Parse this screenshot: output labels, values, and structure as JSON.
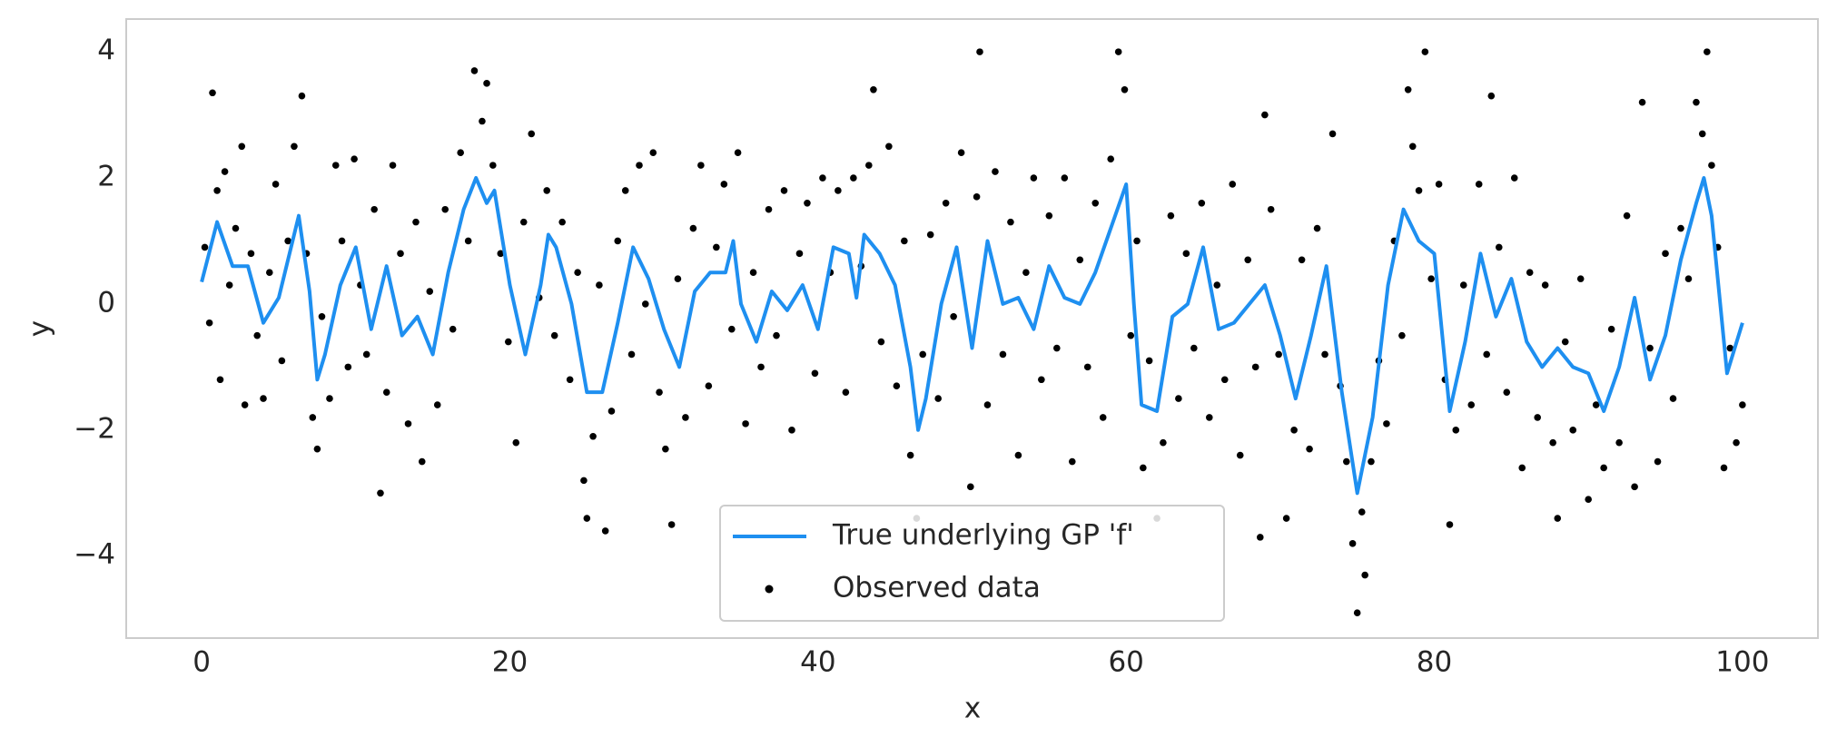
{
  "chart_data": {
    "type": "line",
    "xlabel": "x",
    "ylabel": "y",
    "xlim": [
      -4.9,
      104.9
    ],
    "ylim": [
      -5.3,
      4.52
    ],
    "xticks": [
      0,
      20,
      40,
      60,
      80,
      100
    ],
    "yticks": [
      {
        "value": -4,
        "label": "−4"
      },
      {
        "value": -2,
        "label": "−2"
      },
      0,
      2,
      4
    ],
    "grid": false,
    "legend": "lower center",
    "series": [
      {
        "name": "True underlying GP 'f'",
        "type": "line",
        "color": "#1e8ff0",
        "x": [
          0,
          1,
          2,
          3,
          4,
          5,
          6.3,
          7,
          7.5,
          8,
          9,
          10,
          11,
          12,
          13,
          14,
          15,
          16,
          17,
          17.8,
          18.5,
          19,
          20,
          21,
          22,
          22.5,
          23,
          24,
          25,
          26,
          27,
          28,
          29,
          30,
          31,
          32,
          33,
          34,
          34.5,
          35,
          36,
          37,
          38,
          39,
          40,
          41,
          42,
          42.5,
          43,
          44,
          45,
          46,
          46.5,
          47,
          48,
          49,
          50,
          51,
          52,
          53,
          54,
          55,
          56,
          57,
          58,
          59,
          60,
          60.5,
          61,
          62,
          63,
          64,
          65,
          66,
          67,
          68,
          69,
          70,
          71,
          72,
          73,
          74,
          75,
          76,
          77,
          78,
          79,
          80,
          81,
          82,
          83,
          84,
          85,
          86,
          87,
          88,
          89,
          90,
          91,
          92,
          93,
          94,
          95,
          96,
          97,
          97.5,
          98,
          99,
          100
        ],
        "values": [
          0.35,
          1.3,
          0.6,
          0.6,
          -0.3,
          0.1,
          1.4,
          0.2,
          -1.2,
          -0.8,
          0.3,
          0.9,
          -0.4,
          0.6,
          -0.5,
          -0.2,
          -0.8,
          0.5,
          1.5,
          2.0,
          1.6,
          1.8,
          0.3,
          -0.8,
          0.3,
          1.1,
          0.9,
          0.0,
          -1.4,
          -1.4,
          -0.3,
          0.9,
          0.4,
          -0.4,
          -1.0,
          0.2,
          0.5,
          0.5,
          1.0,
          0.0,
          -0.6,
          0.2,
          -0.1,
          0.3,
          -0.4,
          0.9,
          0.8,
          0.1,
          1.1,
          0.8,
          0.3,
          -1.0,
          -2.0,
          -1.5,
          0.0,
          0.9,
          -0.7,
          1.0,
          0.0,
          0.1,
          -0.4,
          0.6,
          0.1,
          0.0,
          0.5,
          1.2,
          1.9,
          0.0,
          -1.6,
          -1.7,
          -0.2,
          0.0,
          0.9,
          -0.4,
          -0.3,
          0.0,
          0.3,
          -0.5,
          -1.5,
          -0.5,
          0.6,
          -1.4,
          -3.0,
          -1.8,
          0.3,
          1.5,
          1.0,
          0.8,
          -1.7,
          -0.6,
          0.8,
          -0.2,
          0.4,
          -0.6,
          -1.0,
          -0.7,
          -1.0,
          -1.1,
          -1.7,
          -1.0,
          0.1,
          -1.2,
          -0.5,
          0.7,
          1.6,
          2.0,
          1.4,
          -1.1,
          -0.3
        ]
      },
      {
        "name": "Observed data",
        "type": "scatter",
        "color": "#000000",
        "x": [
          0.2,
          0.5,
          0.7,
          1.0,
          1.2,
          1.5,
          1.8,
          2.2,
          2.6,
          2.8,
          3.2,
          3.6,
          4.0,
          4.4,
          4.8,
          5.2,
          5.6,
          6.0,
          6.5,
          6.8,
          7.2,
          7.5,
          7.8,
          8.3,
          8.7,
          9.1,
          9.5,
          9.9,
          10.3,
          10.7,
          11.2,
          11.6,
          12.0,
          12.4,
          12.9,
          13.4,
          13.9,
          14.3,
          14.8,
          15.3,
          15.8,
          16.3,
          16.8,
          17.3,
          17.7,
          18.2,
          18.5,
          18.9,
          19.4,
          19.9,
          20.4,
          20.9,
          21.4,
          21.9,
          22.4,
          22.9,
          23.4,
          23.9,
          24.4,
          24.8,
          25.0,
          25.4,
          25.8,
          26.2,
          26.6,
          27.0,
          27.5,
          27.9,
          28.4,
          28.8,
          29.3,
          29.7,
          30.1,
          30.5,
          30.9,
          31.4,
          31.9,
          32.4,
          32.9,
          33.4,
          33.9,
          34.4,
          34.8,
          35.3,
          35.8,
          36.3,
          36.8,
          37.3,
          37.8,
          38.3,
          38.8,
          39.3,
          39.8,
          40.3,
          40.8,
          41.3,
          41.8,
          42.3,
          42.8,
          43.3,
          43.6,
          44.1,
          44.6,
          45.1,
          45.6,
          46.0,
          46.4,
          46.8,
          47.3,
          47.8,
          48.3,
          48.8,
          49.3,
          49.9,
          50.3,
          50.5,
          51.0,
          51.5,
          52.0,
          52.5,
          53.0,
          53.5,
          54.0,
          54.5,
          55.0,
          55.5,
          56.0,
          56.5,
          57.0,
          57.5,
          58.0,
          58.5,
          59.0,
          59.5,
          59.9,
          60.3,
          60.7,
          61.1,
          61.5,
          62.0,
          62.4,
          62.9,
          63.4,
          63.9,
          64.4,
          64.9,
          65.4,
          65.9,
          66.4,
          66.9,
          67.4,
          67.9,
          68.4,
          68.7,
          69.0,
          69.4,
          69.9,
          70.4,
          70.9,
          71.4,
          71.9,
          72.4,
          72.9,
          73.4,
          73.9,
          74.3,
          74.7,
          75.0,
          75.3,
          75.5,
          75.9,
          76.4,
          76.9,
          77.4,
          77.9,
          78.3,
          78.6,
          79.0,
          79.4,
          79.8,
          80.3,
          80.7,
          81.0,
          81.4,
          81.9,
          82.4,
          82.9,
          83.4,
          83.7,
          84.2,
          84.7,
          85.2,
          85.7,
          86.2,
          86.7,
          87.2,
          87.7,
          88.0,
          88.5,
          89.0,
          89.5,
          90.0,
          90.5,
          91.0,
          91.5,
          92.0,
          92.5,
          93.0,
          93.5,
          94.0,
          94.5,
          95.0,
          95.5,
          96.0,
          96.5,
          97.0,
          97.4,
          97.7,
          98.0,
          98.4,
          98.8,
          99.2,
          99.6,
          100.0
        ],
        "values": [
          0.9,
          -0.3,
          3.35,
          1.8,
          -1.2,
          2.1,
          0.3,
          1.2,
          2.5,
          -1.6,
          0.8,
          -0.5,
          -1.5,
          0.5,
          1.9,
          -0.9,
          1.0,
          2.5,
          3.3,
          0.8,
          -1.8,
          -2.3,
          -0.2,
          -1.5,
          2.2,
          1.0,
          -1.0,
          2.3,
          0.3,
          -0.8,
          1.5,
          -3.0,
          -1.4,
          2.2,
          0.8,
          -1.9,
          1.3,
          -2.5,
          0.2,
          -1.6,
          1.5,
          -0.4,
          2.4,
          1.0,
          3.7,
          2.9,
          3.5,
          2.2,
          0.8,
          -0.6,
          -2.2,
          1.3,
          2.7,
          0.1,
          1.8,
          -0.5,
          1.3,
          -1.2,
          0.5,
          -2.8,
          -3.4,
          -2.1,
          0.3,
          -3.6,
          -1.7,
          1.0,
          1.8,
          -0.8,
          2.2,
          0.0,
          2.4,
          -1.4,
          -2.3,
          -3.5,
          0.4,
          -1.8,
          1.2,
          2.2,
          -1.3,
          0.9,
          1.9,
          -0.4,
          2.4,
          -1.9,
          0.5,
          -1.0,
          1.5,
          -0.5,
          1.8,
          -2.0,
          0.8,
          1.6,
          -1.1,
          2.0,
          0.5,
          1.8,
          -1.4,
          2.0,
          0.6,
          2.2,
          3.4,
          -0.6,
          2.5,
          -1.3,
          1.0,
          -2.4,
          -3.4,
          -0.8,
          1.1,
          -1.5,
          1.6,
          -0.2,
          2.4,
          -2.9,
          1.7,
          4.0,
          -1.6,
          2.1,
          -0.8,
          1.3,
          -2.4,
          0.5,
          2.0,
          -1.2,
          1.4,
          -0.7,
          2.0,
          -2.5,
          0.7,
          -1.0,
          1.6,
          -1.8,
          2.3,
          4.0,
          3.4,
          -0.5,
          1.0,
          -2.6,
          -0.9,
          -3.4,
          -2.2,
          1.4,
          -1.5,
          0.8,
          -0.7,
          1.6,
          -1.8,
          0.3,
          -1.2,
          1.9,
          -2.4,
          0.7,
          -1.0,
          -3.7,
          3.0,
          1.5,
          -0.8,
          -3.4,
          -2.0,
          0.7,
          -2.3,
          1.2,
          -0.8,
          2.7,
          -1.3,
          -2.5,
          -3.8,
          -4.9,
          -3.3,
          -4.3,
          -2.5,
          -0.9,
          -1.9,
          1.0,
          -0.5,
          3.4,
          2.5,
          1.8,
          4.0,
          0.4,
          1.9,
          -1.2,
          -3.5,
          -2.0,
          0.3,
          -1.6,
          1.9,
          -0.8,
          3.3,
          0.9,
          -1.4,
          2.0,
          -2.6,
          0.5,
          -1.8,
          0.3,
          -2.2,
          -3.4,
          -0.6,
          -2.0,
          0.4,
          -3.1,
          -1.6,
          -2.6,
          -0.4,
          -2.2,
          1.4,
          -2.9,
          3.2,
          -0.7,
          -2.5,
          0.8,
          -1.5,
          1.2,
          0.4,
          3.2,
          2.7,
          4.0,
          2.2,
          0.9,
          -2.6,
          -0.7,
          -2.2,
          -1.6
        ]
      }
    ]
  }
}
